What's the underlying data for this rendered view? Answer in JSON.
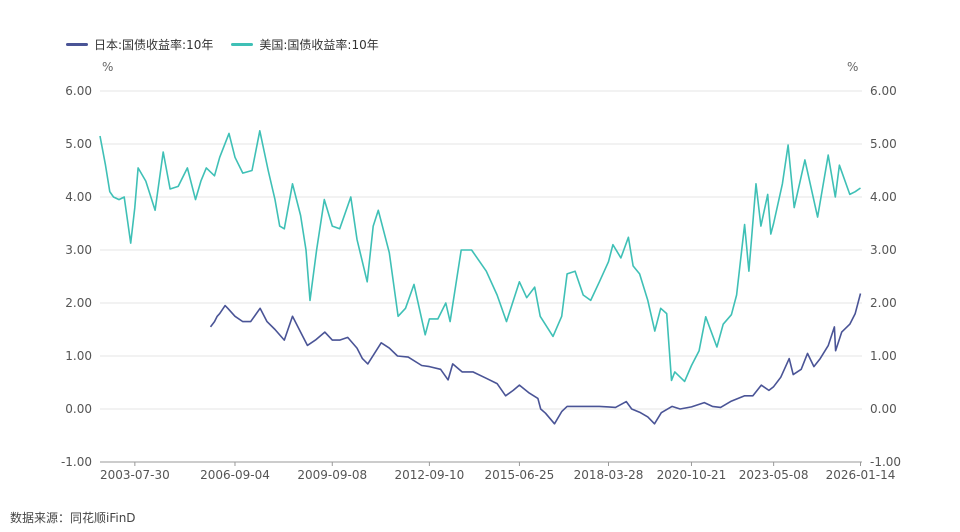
{
  "chart_data": {
    "type": "line",
    "source": "数据来源：同花顺iFinD",
    "y_unit_left": "%",
    "y_unit_right": "%",
    "ylim": [
      -1,
      6
    ],
    "y_ticks": [
      "6.00",
      "5.00",
      "4.00",
      "3.00",
      "2.00",
      "1.00",
      "0.00",
      "-1.00"
    ],
    "x_ticks": [
      "2003-07-30",
      "2006-09-04",
      "2009-09-08",
      "2012-09-10",
      "2015-06-25",
      "2018-03-28",
      "2020-10-21",
      "2023-05-08",
      "2026-01-14"
    ],
    "x_range": [
      "2002-07-01",
      "2026-01-31"
    ],
    "grid": "horizontal",
    "legend_position": "top-left",
    "series": [
      {
        "name": "日本:国债收益率:10年",
        "color": "#4a5496",
        "points": [
          [
            "2005-12-01",
            1.55
          ],
          [
            "2006-01-15",
            1.65
          ],
          [
            "2006-02-15",
            1.75
          ],
          [
            "2006-03-15",
            1.8
          ],
          [
            "2006-05-15",
            1.95
          ],
          [
            "2006-06-15",
            1.9
          ],
          [
            "2006-09-04",
            1.75
          ],
          [
            "2006-12-01",
            1.65
          ],
          [
            "2007-03-01",
            1.65
          ],
          [
            "2007-06-15",
            1.9
          ],
          [
            "2007-09-01",
            1.65
          ],
          [
            "2007-12-01",
            1.5
          ],
          [
            "2008-03-15",
            1.3
          ],
          [
            "2008-06-15",
            1.75
          ],
          [
            "2008-09-15",
            1.45
          ],
          [
            "2008-12-01",
            1.2
          ],
          [
            "2009-03-01",
            1.3
          ],
          [
            "2009-06-15",
            1.45
          ],
          [
            "2009-09-08",
            1.3
          ],
          [
            "2009-12-01",
            1.3
          ],
          [
            "2010-03-01",
            1.35
          ],
          [
            "2010-06-15",
            1.15
          ],
          [
            "2010-08-15",
            0.95
          ],
          [
            "2010-10-15",
            0.85
          ],
          [
            "2011-03-15",
            1.25
          ],
          [
            "2011-06-15",
            1.15
          ],
          [
            "2011-09-15",
            1.0
          ],
          [
            "2012-01-15",
            0.98
          ],
          [
            "2012-06-15",
            0.82
          ],
          [
            "2012-09-10",
            0.8
          ],
          [
            "2013-01-15",
            0.75
          ],
          [
            "2013-04-10",
            0.55
          ],
          [
            "2013-06-01",
            0.85
          ],
          [
            "2013-09-15",
            0.7
          ],
          [
            "2014-01-15",
            0.7
          ],
          [
            "2014-06-15",
            0.58
          ],
          [
            "2014-10-15",
            0.48
          ],
          [
            "2015-01-20",
            0.25
          ],
          [
            "2015-04-15",
            0.35
          ],
          [
            "2015-06-25",
            0.45
          ],
          [
            "2015-10-15",
            0.3
          ],
          [
            "2016-01-20",
            0.2
          ],
          [
            "2016-02-20",
            0.0
          ],
          [
            "2016-04-15",
            -0.08
          ],
          [
            "2016-07-25",
            -0.28
          ],
          [
            "2016-10-15",
            -0.05
          ],
          [
            "2016-12-15",
            0.05
          ],
          [
            "2017-06-15",
            0.05
          ],
          [
            "2017-12-15",
            0.05
          ],
          [
            "2018-03-28",
            0.04
          ],
          [
            "2018-06-15",
            0.03
          ],
          [
            "2018-10-15",
            0.14
          ],
          [
            "2018-12-15",
            0.0
          ],
          [
            "2019-03-15",
            -0.06
          ],
          [
            "2019-06-15",
            -0.15
          ],
          [
            "2019-08-30",
            -0.28
          ],
          [
            "2019-11-15",
            -0.07
          ],
          [
            "2020-03-15",
            0.05
          ],
          [
            "2020-06-15",
            0.0
          ],
          [
            "2020-10-21",
            0.04
          ],
          [
            "2021-03-15",
            0.12
          ],
          [
            "2021-06-15",
            0.05
          ],
          [
            "2021-09-15",
            0.03
          ],
          [
            "2022-01-15",
            0.15
          ],
          [
            "2022-06-15",
            0.25
          ],
          [
            "2022-09-15",
            0.25
          ],
          [
            "2022-12-20",
            0.45
          ],
          [
            "2023-03-15",
            0.35
          ],
          [
            "2023-05-08",
            0.42
          ],
          [
            "2023-07-28",
            0.6
          ],
          [
            "2023-10-31",
            0.95
          ],
          [
            "2023-12-15",
            0.65
          ],
          [
            "2024-03-15",
            0.75
          ],
          [
            "2024-05-25",
            1.05
          ],
          [
            "2024-08-05",
            0.8
          ],
          [
            "2024-10-15",
            0.95
          ],
          [
            "2025-01-15",
            1.2
          ],
          [
            "2025-03-25",
            1.55
          ],
          [
            "2025-04-07",
            1.1
          ],
          [
            "2025-06-15",
            1.45
          ],
          [
            "2025-09-15",
            1.6
          ],
          [
            "2025-11-15",
            1.8
          ],
          [
            "2026-01-14",
            2.18
          ]
        ]
      },
      {
        "name": "美国:国债收益率:10年",
        "color": "#3fc0b6",
        "points": [
          [
            "2002-07-01",
            5.15
          ],
          [
            "2002-09-01",
            4.6
          ],
          [
            "2002-10-20",
            4.1
          ],
          [
            "2002-12-01",
            4.0
          ],
          [
            "2003-02-01",
            3.95
          ],
          [
            "2003-04-01",
            4.0
          ],
          [
            "2003-06-13",
            3.13
          ],
          [
            "2003-07-30",
            3.8
          ],
          [
            "2003-09-05",
            4.55
          ],
          [
            "2003-12-01",
            4.3
          ],
          [
            "2004-03-15",
            3.75
          ],
          [
            "2004-06-15",
            4.85
          ],
          [
            "2004-09-01",
            4.15
          ],
          [
            "2004-12-01",
            4.2
          ],
          [
            "2005-03-15",
            4.55
          ],
          [
            "2005-06-15",
            3.95
          ],
          [
            "2005-08-15",
            4.3
          ],
          [
            "2005-10-15",
            4.55
          ],
          [
            "2006-01-15",
            4.4
          ],
          [
            "2006-03-15",
            4.75
          ],
          [
            "2006-06-28",
            5.2
          ],
          [
            "2006-09-04",
            4.75
          ],
          [
            "2006-12-01",
            4.45
          ],
          [
            "2007-03-15",
            4.5
          ],
          [
            "2007-06-12",
            5.25
          ],
          [
            "2007-09-15",
            4.5
          ],
          [
            "2007-12-01",
            3.95
          ],
          [
            "2008-01-23",
            3.45
          ],
          [
            "2008-03-15",
            3.4
          ],
          [
            "2008-06-15",
            4.25
          ],
          [
            "2008-09-15",
            3.65
          ],
          [
            "2008-11-15",
            3.0
          ],
          [
            "2008-12-30",
            2.05
          ],
          [
            "2009-03-15",
            3.0
          ],
          [
            "2009-06-10",
            3.95
          ],
          [
            "2009-09-08",
            3.45
          ],
          [
            "2009-12-01",
            3.4
          ],
          [
            "2010-04-05",
            4.0
          ],
          [
            "2010-06-15",
            3.2
          ],
          [
            "2010-10-08",
            2.4
          ],
          [
            "2010-12-15",
            3.45
          ],
          [
            "2011-02-10",
            3.75
          ],
          [
            "2011-06-15",
            2.95
          ],
          [
            "2011-09-22",
            1.75
          ],
          [
            "2011-12-15",
            1.9
          ],
          [
            "2012-03-20",
            2.35
          ],
          [
            "2012-07-25",
            1.4
          ],
          [
            "2012-09-10",
            1.7
          ],
          [
            "2012-12-15",
            1.7
          ],
          [
            "2013-03-15",
            2.0
          ],
          [
            "2013-05-02",
            1.65
          ],
          [
            "2013-09-05",
            3.0
          ],
          [
            "2013-12-31",
            3.0
          ],
          [
            "2014-06-15",
            2.6
          ],
          [
            "2014-10-15",
            2.15
          ],
          [
            "2015-01-30",
            1.65
          ],
          [
            "2015-06-25",
            2.4
          ],
          [
            "2015-09-15",
            2.1
          ],
          [
            "2015-12-15",
            2.3
          ],
          [
            "2016-02-15",
            1.75
          ],
          [
            "2016-07-08",
            1.37
          ],
          [
            "2016-10-15",
            1.75
          ],
          [
            "2016-12-15",
            2.55
          ],
          [
            "2017-03-15",
            2.6
          ],
          [
            "2017-06-15",
            2.15
          ],
          [
            "2017-09-08",
            2.05
          ],
          [
            "2017-12-15",
            2.4
          ],
          [
            "2018-03-28",
            2.78
          ],
          [
            "2018-05-17",
            3.1
          ],
          [
            "2018-08-15",
            2.85
          ],
          [
            "2018-11-08",
            3.24
          ],
          [
            "2018-12-31",
            2.7
          ],
          [
            "2019-03-15",
            2.55
          ],
          [
            "2019-06-15",
            2.05
          ],
          [
            "2019-09-03",
            1.47
          ],
          [
            "2019-11-08",
            1.9
          ],
          [
            "2020-01-15",
            1.8
          ],
          [
            "2020-03-09",
            0.54
          ],
          [
            "2020-04-15",
            0.7
          ],
          [
            "2020-08-04",
            0.52
          ],
          [
            "2020-10-21",
            0.82
          ],
          [
            "2021-01-15",
            1.1
          ],
          [
            "2021-03-31",
            1.74
          ],
          [
            "2021-08-04",
            1.17
          ],
          [
            "2021-10-15",
            1.6
          ],
          [
            "2022-01-15",
            1.78
          ],
          [
            "2022-03-15",
            2.15
          ],
          [
            "2022-06-14",
            3.48
          ],
          [
            "2022-08-01",
            2.6
          ],
          [
            "2022-10-21",
            4.25
          ],
          [
            "2022-12-15",
            3.45
          ],
          [
            "2023-03-02",
            4.05
          ],
          [
            "2023-04-06",
            3.3
          ],
          [
            "2023-05-08",
            3.5
          ],
          [
            "2023-08-15",
            4.25
          ],
          [
            "2023-10-19",
            4.98
          ],
          [
            "2023-12-27",
            3.8
          ],
          [
            "2024-04-25",
            4.7
          ],
          [
            "2024-09-16",
            3.62
          ],
          [
            "2025-01-14",
            4.79
          ],
          [
            "2025-04-04",
            4.0
          ],
          [
            "2025-05-21",
            4.6
          ],
          [
            "2025-09-15",
            4.05
          ],
          [
            "2025-11-15",
            4.1
          ],
          [
            "2026-01-14",
            4.17
          ]
        ]
      }
    ]
  }
}
